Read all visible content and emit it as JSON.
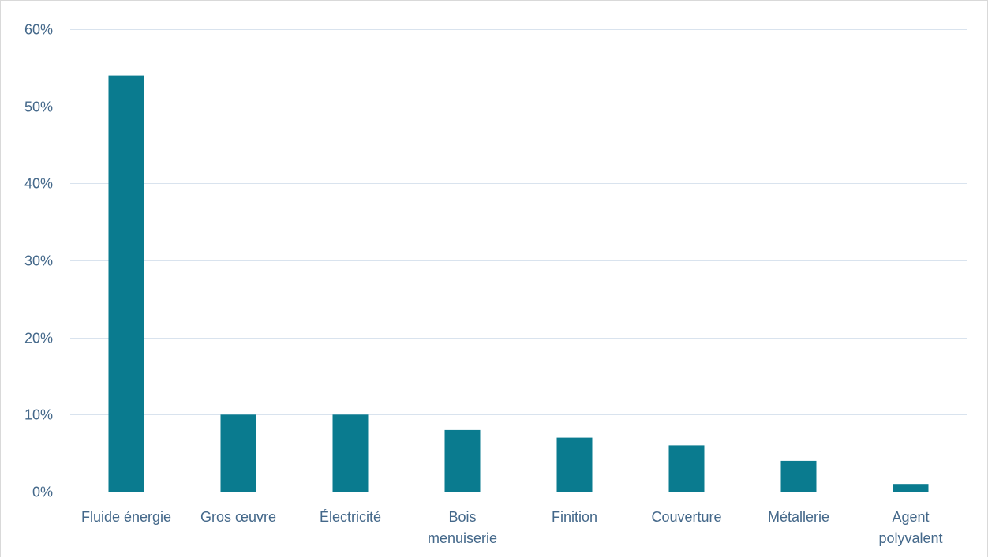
{
  "chart_data": {
    "type": "bar",
    "title": "",
    "xlabel": "",
    "ylabel": "",
    "categories": [
      "Fluide énergie",
      "Gros œuvre",
      "Électricité",
      "Bois menuiserie",
      "Finition",
      "Couverture",
      "Métallerie",
      "Agent polyvalent"
    ],
    "category_lines": [
      [
        "Fluide énergie"
      ],
      [
        "Gros œuvre"
      ],
      [
        "Électricité"
      ],
      [
        "Bois",
        "menuiserie"
      ],
      [
        "Finition"
      ],
      [
        "Couverture"
      ],
      [
        "Métallerie"
      ],
      [
        "Agent",
        "polyvalent"
      ]
    ],
    "values": [
      54,
      10,
      10,
      8,
      7,
      6,
      4,
      1
    ],
    "ylim": [
      0,
      60
    ],
    "yticks": [
      0,
      10,
      20,
      30,
      40,
      50,
      60
    ],
    "ytick_labels": [
      "0%",
      "10%",
      "20%",
      "30%",
      "40%",
      "50%",
      "60%"
    ],
    "grid": true,
    "legend": "none",
    "colors": {
      "bar": "#0a7b8f",
      "text": "#44688a",
      "grid": "#d9e3ee"
    }
  }
}
